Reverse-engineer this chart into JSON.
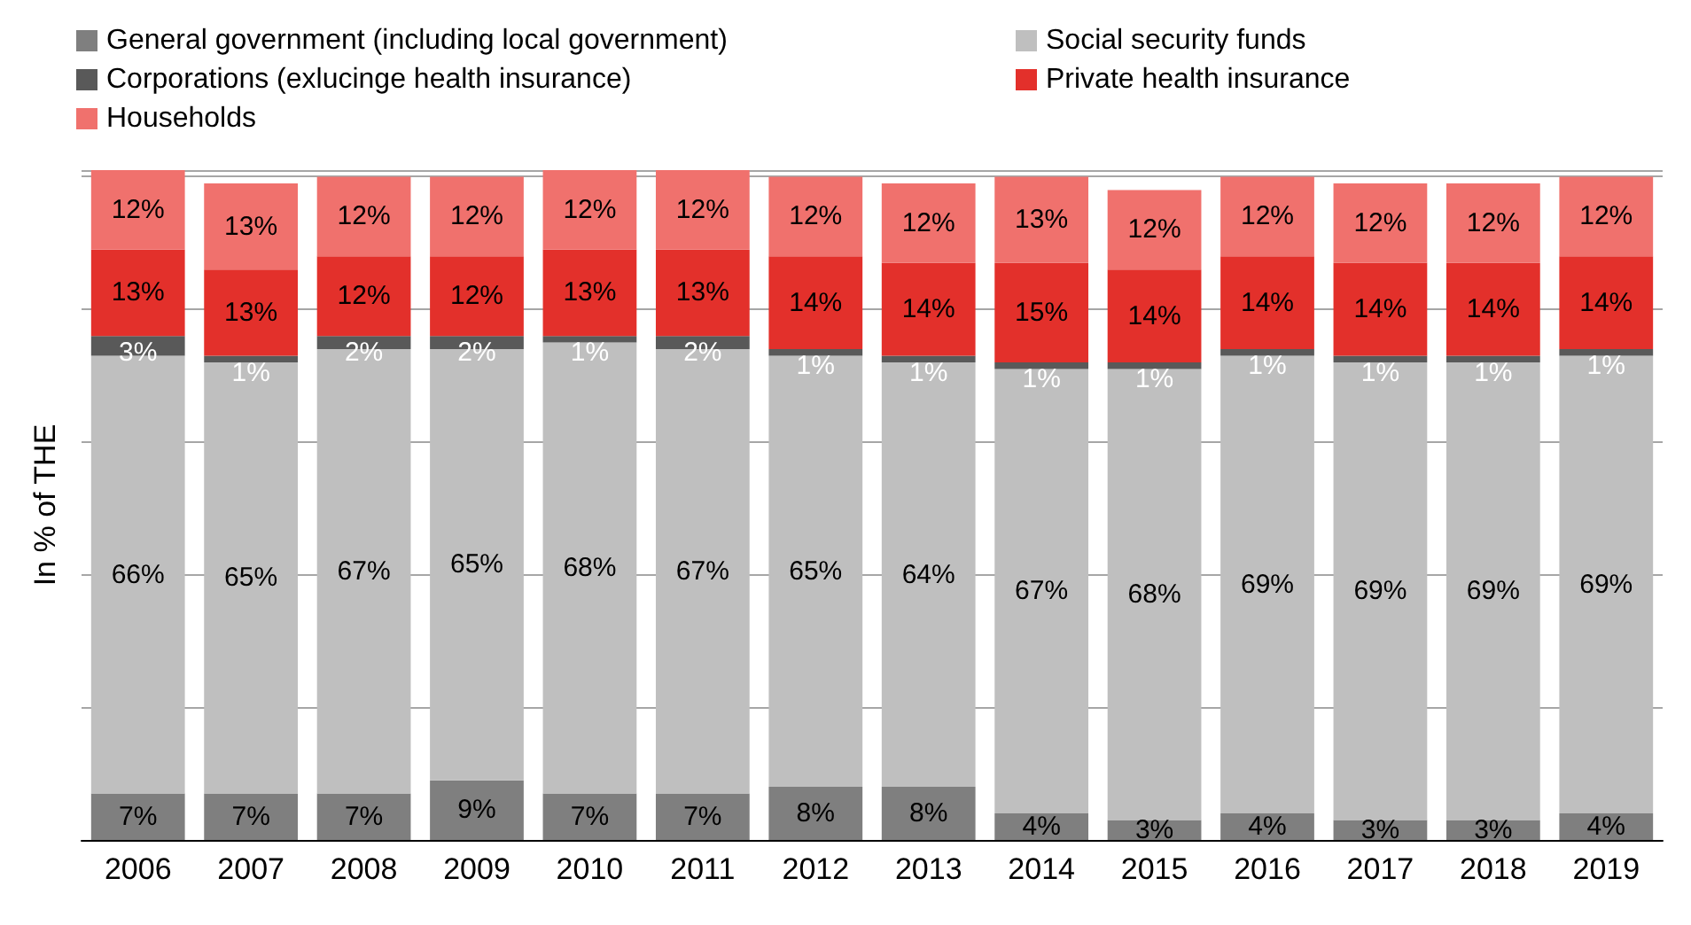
{
  "chart_data": {
    "type": "bar",
    "stacked": true,
    "ylabel": "In % of THE",
    "categories": [
      "2006",
      "2007",
      "2008",
      "2009",
      "2010",
      "2011",
      "2012",
      "2013",
      "2014",
      "2015",
      "2016",
      "2017",
      "2018",
      "2019"
    ],
    "series": [
      {
        "name": "General government (including local government)",
        "color": "#7f7f7f",
        "values": [
          7,
          7,
          7,
          9,
          7,
          7,
          8,
          8,
          4,
          3,
          4,
          3,
          3,
          4
        ],
        "value_labels": [
          "7%",
          "7%",
          "7%",
          "9%",
          "7%",
          "7%",
          "8%",
          "8%",
          "4%",
          "3%",
          "4%",
          "3%",
          "3%",
          "4%"
        ]
      },
      {
        "name": "Social security funds",
        "color": "#bfbfbf",
        "values": [
          66,
          65,
          67,
          65,
          68,
          67,
          65,
          64,
          67,
          68,
          69,
          69,
          69,
          69
        ],
        "value_labels": [
          "66%",
          "65%",
          "67%",
          "65%",
          "68%",
          "67%",
          "65%",
          "64%",
          "67%",
          "68%",
          "69%",
          "69%",
          "69%",
          "69%"
        ]
      },
      {
        "name": "Corporations (exlucinge health insurance)",
        "color": "#595959",
        "values": [
          3,
          1,
          2,
          2,
          1,
          2,
          1,
          1,
          1,
          1,
          1,
          1,
          1,
          1
        ],
        "value_labels": [
          "3%",
          "1%",
          "2%",
          "2%",
          "1%",
          "2%",
          "1%",
          "1%",
          "1%",
          "1%",
          "1%",
          "1%",
          "1%",
          "1%"
        ]
      },
      {
        "name": "Private health insurance",
        "color": "#e3302b",
        "values": [
          13,
          13,
          12,
          12,
          13,
          13,
          14,
          14,
          15,
          14,
          14,
          14,
          14,
          14
        ],
        "value_labels": [
          "13%",
          "13%",
          "12%",
          "12%",
          "13%",
          "13%",
          "14%",
          "14%",
          "15%",
          "14%",
          "14%",
          "14%",
          "14%",
          "14%"
        ]
      },
      {
        "name": "Households",
        "color": "#f0716d",
        "values": [
          12,
          13,
          12,
          12,
          12,
          12,
          12,
          12,
          13,
          12,
          12,
          12,
          12,
          12
        ],
        "value_labels": [
          "12%",
          "13%",
          "12%",
          "12%",
          "12%",
          "12%",
          "12%",
          "12%",
          "13%",
          "12%",
          "12%",
          "12%",
          "12%",
          "12%"
        ]
      }
    ],
    "tick_labels": "x",
    "grid": "y",
    "legend": "top"
  }
}
